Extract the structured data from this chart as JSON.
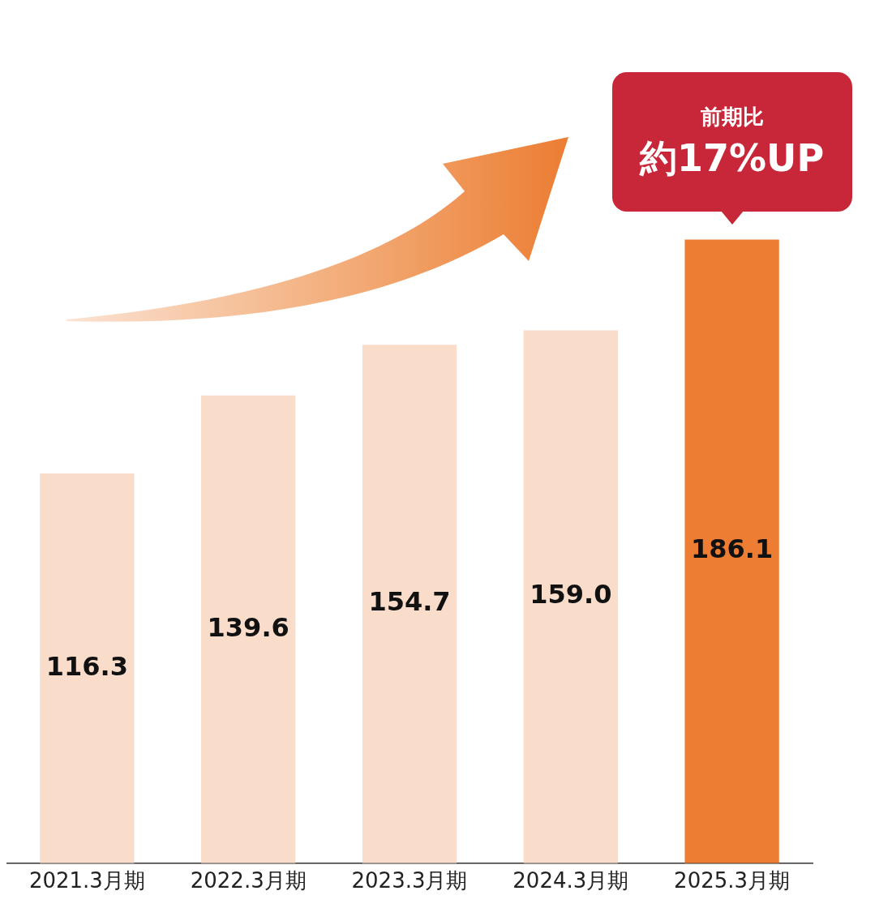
{
  "chart_data": {
    "type": "bar",
    "categories": [
      "2021.3月期",
      "2022.3月期",
      "2023.3月期",
      "2024.3月期",
      "2025.3月期"
    ],
    "values": [
      116.3,
      139.6,
      154.7,
      159.0,
      186.1
    ],
    "value_labels": [
      "116.3",
      "139.6",
      "154.7",
      "159.0",
      "186.1"
    ],
    "colors": [
      "#f9dcc9",
      "#f9dcc9",
      "#f9dcc9",
      "#f9dcc9",
      "#ec7d33"
    ],
    "grid": false,
    "legend": false,
    "tick_labels": "x",
    "annotations": [
      "前期比",
      {
        "text": "約17%UP",
        "x": "2025.3月期",
        "y": 186.1
      }
    ]
  }
}
